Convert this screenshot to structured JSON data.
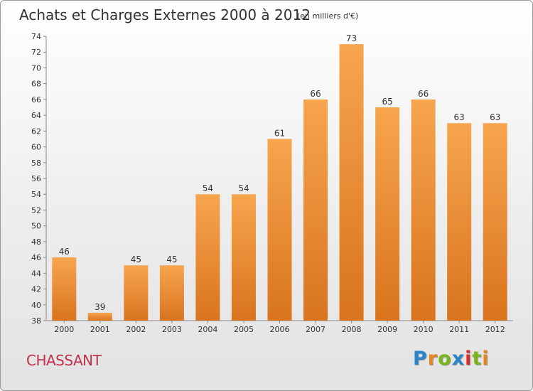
{
  "title": "Achats et Charges Externes 2000 à 2012",
  "subtitle": "(en milliers d'€)",
  "place": "CHASSANT",
  "brand": {
    "letters": [
      "P",
      "r",
      "o",
      "x",
      "i",
      "t",
      "i"
    ],
    "colors": [
      "#2a86c8",
      "#e8841c",
      "#7ab51d",
      "#2a86c8",
      "#d92c2c",
      "#7ab51d",
      "#e8841c"
    ]
  },
  "colors": {
    "bar_light": "#f7a54e",
    "bar_dark": "#d9741e",
    "axis": "#888888"
  },
  "chart_data": {
    "type": "bar",
    "categories": [
      "2000",
      "2001",
      "2002",
      "2003",
      "2004",
      "2005",
      "2006",
      "2007",
      "2008",
      "2009",
      "2010",
      "2011",
      "2012"
    ],
    "values": [
      46,
      39,
      45,
      45,
      54,
      54,
      61,
      66,
      73,
      65,
      66,
      63,
      63
    ],
    "yticks": [
      38,
      40,
      42,
      44,
      46,
      48,
      50,
      52,
      54,
      56,
      58,
      60,
      62,
      64,
      66,
      68,
      70,
      72,
      74
    ],
    "ylim": [
      38,
      74
    ],
    "grid": false,
    "legend": "none"
  }
}
